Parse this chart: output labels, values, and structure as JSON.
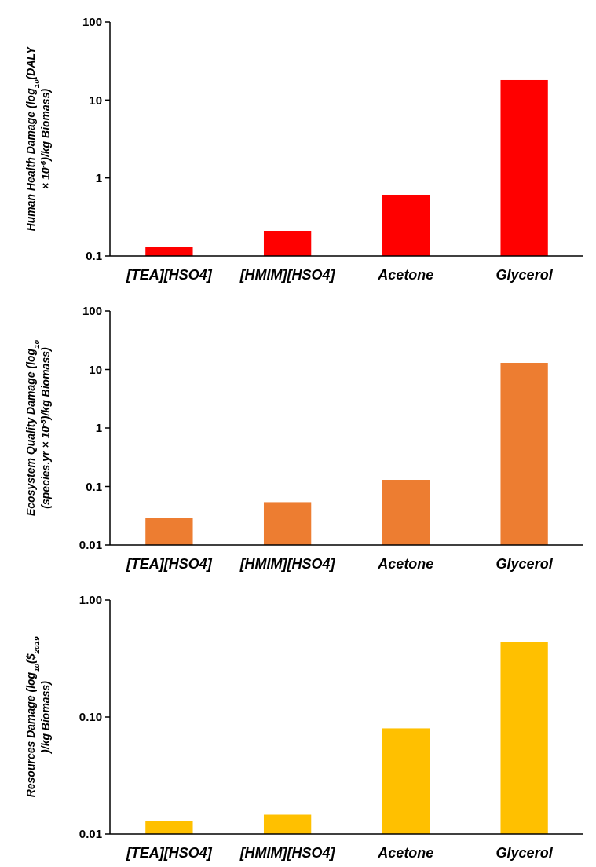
{
  "chart_data": [
    {
      "type": "bar",
      "ylabel": "Human Health Damage (log$_{10}$(DALY × 10$^{-6}$)/kg Biomass)",
      "categories": [
        "[TEA][HSO4]",
        "[HMIM][HSO4]",
        "Acetone",
        "Glycerol"
      ],
      "values": [
        0.13,
        0.21,
        0.61,
        18
      ],
      "color": "#ff0000",
      "log": true,
      "ylim": [
        0.1,
        100
      ],
      "yticks": [
        0.1,
        1,
        10,
        100
      ]
    },
    {
      "type": "bar",
      "ylabel": "Ecosystem Quality Damage (log$_{10}$(species.yr × 10$^{-8}$)/kg Biomass)",
      "categories": [
        "[TEA][HSO4]",
        "[HMIM][HSO4]",
        "Acetone",
        "Glycerol"
      ],
      "values": [
        0.029,
        0.054,
        0.13,
        13
      ],
      "color": "#ed7d31",
      "log": true,
      "ylim": [
        0.01,
        100
      ],
      "yticks": [
        0.01,
        0.1,
        1,
        10,
        100
      ]
    },
    {
      "type": "bar",
      "ylabel": "Resources Damage (log$_{10}$($$_{2019}$)/kg Biomass)",
      "categories": [
        "[TEA][HSO4]",
        "[HMIM][HSO4]",
        "Acetone",
        "Glycerol"
      ],
      "values": [
        0.013,
        0.0146,
        0.08,
        0.44
      ],
      "color": "#ffc000",
      "log": true,
      "ylim": [
        0.01,
        1
      ],
      "yticks": [
        {
          "value": 0.01,
          "label": "0.01"
        },
        {
          "value": 0.1,
          "label": "0.10"
        },
        {
          "value": 1,
          "label": "1.00"
        }
      ]
    }
  ]
}
